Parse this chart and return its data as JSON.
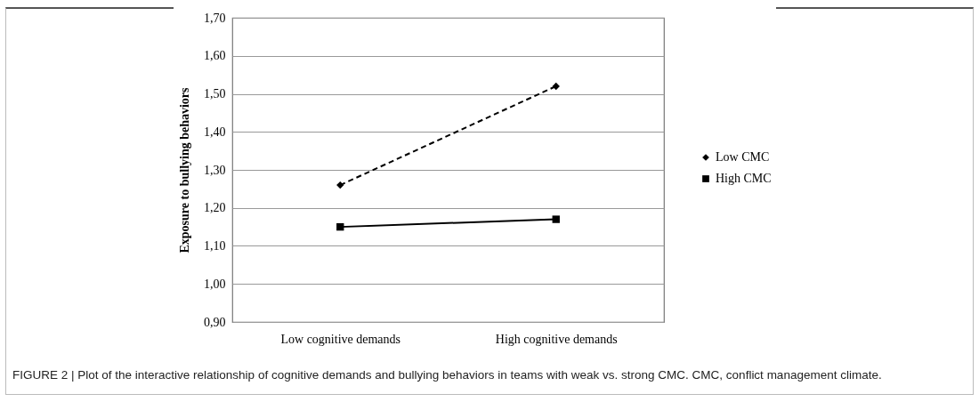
{
  "chart_data": {
    "type": "line",
    "ylabel": "Exposure to bullying behaviors",
    "categories": [
      "Low cognitive demands",
      "High cognitive demands"
    ],
    "series": [
      {
        "name": "Low CMC",
        "color": "#000000",
        "values": [
          1.26,
          1.52
        ],
        "marker": "diamond",
        "line_style": "dashed"
      },
      {
        "name": "High CMC",
        "color": "#000000",
        "values": [
          1.15,
          1.17
        ],
        "marker": "square",
        "line_style": "solid"
      }
    ],
    "ylim": [
      0.9,
      1.7
    ],
    "yticks": [
      {
        "value": 0.9,
        "label": "0,90"
      },
      {
        "value": 1.0,
        "label": "1,00"
      },
      {
        "value": 1.1,
        "label": "1,10"
      },
      {
        "value": 1.2,
        "label": "1,20"
      },
      {
        "value": 1.3,
        "label": "1,30"
      },
      {
        "value": 1.4,
        "label": "1,40"
      },
      {
        "value": 1.5,
        "label": "1,50"
      },
      {
        "value": 1.6,
        "label": "1,60"
      },
      {
        "value": 1.7,
        "label": "1,70"
      }
    ],
    "grid": "y",
    "legend": "right",
    "annotations": [
      "FIGURE 2 | Plot of the interactive relationship of cognitive demands and bullying behaviors in teams with weak vs. strong CMC. CMC, conflict management climate."
    ]
  }
}
